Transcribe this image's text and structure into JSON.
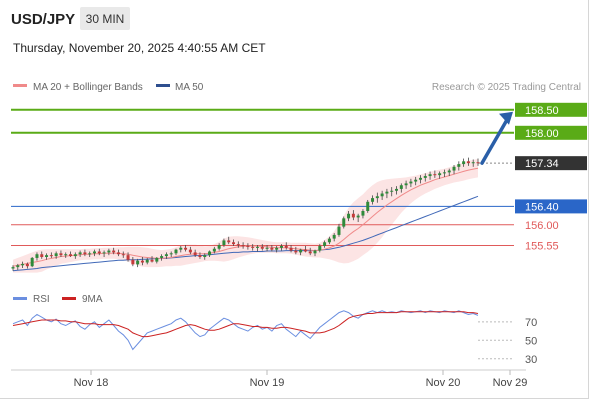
{
  "header": {
    "symbol": "USD/JPY",
    "timeframe": "30 MIN",
    "datetime": "Thursday, November 20, 2025 4:40:55 AM CET",
    "source": "Research © 2025 Trading Central"
  },
  "legend": {
    "ma20": "MA 20 + Bollinger Bands",
    "ma50": "MA 50",
    "rsi": "RSI",
    "rsi_ma": "9MA"
  },
  "colors": {
    "green_level": "#5aab17",
    "blue_level": "#2a66c8",
    "red_level": "#e05a5a",
    "current_price": "#333333",
    "ma20": "#f08a8a",
    "ma50": "#4169b8",
    "bollinger_fill": "#fbd9d9",
    "candle_up": "#2f8a3a",
    "candle_down": "#c43a3a",
    "arrow": "#2a5fa8",
    "rsi_line": "#6b8fe0",
    "rsi_ma_line": "#cc2222"
  },
  "chart_data": [
    {
      "type": "candlestick",
      "panel": "price",
      "x_ticks": [
        "Nov 18",
        "Nov 19",
        "Nov 20",
        "Nov 29"
      ],
      "ylim": [
        154.8,
        158.8
      ],
      "levels": [
        {
          "label": "158.50",
          "value": 158.5,
          "style": "green-box"
        },
        {
          "label": "158.00",
          "value": 158.0,
          "style": "green-box"
        },
        {
          "label": "157.34",
          "value": 157.34,
          "style": "current"
        },
        {
          "label": "156.40",
          "value": 156.4,
          "style": "blue-box"
        },
        {
          "label": "156.00",
          "value": 156.0,
          "style": "red-text"
        },
        {
          "label": "155.55",
          "value": 155.55,
          "style": "red-text"
        }
      ],
      "ohlc": [
        [
          155.05,
          155.12,
          155.0,
          155.08
        ],
        [
          155.08,
          155.15,
          155.02,
          155.12
        ],
        [
          155.12,
          155.2,
          155.06,
          155.15
        ],
        [
          155.15,
          155.18,
          155.05,
          155.1
        ],
        [
          155.1,
          155.3,
          155.08,
          155.28
        ],
        [
          155.28,
          155.4,
          155.22,
          155.36
        ],
        [
          155.36,
          155.42,
          155.26,
          155.3
        ],
        [
          155.3,
          155.38,
          155.24,
          155.34
        ],
        [
          155.34,
          155.4,
          155.28,
          155.32
        ],
        [
          155.32,
          155.42,
          155.26,
          155.38
        ],
        [
          155.38,
          155.44,
          155.3,
          155.34
        ],
        [
          155.34,
          155.4,
          155.28,
          155.36
        ],
        [
          155.36,
          155.42,
          155.3,
          155.32
        ],
        [
          155.32,
          155.4,
          155.26,
          155.36
        ],
        [
          155.36,
          155.44,
          155.3,
          155.4
        ],
        [
          155.4,
          155.46,
          155.32,
          155.36
        ],
        [
          155.36,
          155.42,
          155.3,
          155.38
        ],
        [
          155.38,
          155.46,
          155.32,
          155.42
        ],
        [
          155.42,
          155.48,
          155.34,
          155.38
        ],
        [
          155.38,
          155.44,
          155.3,
          155.4
        ],
        [
          155.4,
          155.48,
          155.34,
          155.44
        ],
        [
          155.44,
          155.5,
          155.36,
          155.4
        ],
        [
          155.4,
          155.46,
          155.32,
          155.36
        ],
        [
          155.36,
          155.42,
          155.28,
          155.34
        ],
        [
          155.34,
          155.4,
          155.2,
          155.24
        ],
        [
          155.24,
          155.3,
          155.1,
          155.14
        ],
        [
          155.14,
          155.26,
          155.08,
          155.22
        ],
        [
          155.22,
          155.3,
          155.12,
          155.18
        ],
        [
          155.18,
          155.28,
          155.14,
          155.24
        ],
        [
          155.24,
          155.32,
          155.18,
          155.2
        ],
        [
          155.2,
          155.3,
          155.16,
          155.28
        ],
        [
          155.28,
          155.36,
          155.22,
          155.32
        ],
        [
          155.32,
          155.4,
          155.26,
          155.36
        ],
        [
          155.36,
          155.42,
          155.3,
          155.38
        ],
        [
          155.38,
          155.48,
          155.34,
          155.46
        ],
        [
          155.46,
          155.54,
          155.4,
          155.5
        ],
        [
          155.5,
          155.56,
          155.42,
          155.46
        ],
        [
          155.46,
          155.52,
          155.36,
          155.4
        ],
        [
          155.4,
          155.46,
          155.3,
          155.34
        ],
        [
          155.34,
          155.4,
          155.26,
          155.3
        ],
        [
          155.3,
          155.38,
          155.24,
          155.34
        ],
        [
          155.34,
          155.44,
          155.3,
          155.42
        ],
        [
          155.42,
          155.52,
          155.38,
          155.48
        ],
        [
          155.48,
          155.6,
          155.44,
          155.56
        ],
        [
          155.56,
          155.7,
          155.52,
          155.66
        ],
        [
          155.66,
          155.74,
          155.58,
          155.62
        ],
        [
          155.62,
          155.68,
          155.54,
          155.58
        ],
        [
          155.58,
          155.64,
          155.5,
          155.56
        ],
        [
          155.56,
          155.62,
          155.48,
          155.54
        ],
        [
          155.54,
          155.6,
          155.46,
          155.52
        ],
        [
          155.52,
          155.58,
          155.44,
          155.5
        ],
        [
          155.5,
          155.56,
          155.42,
          155.52
        ],
        [
          155.52,
          155.58,
          155.44,
          155.48
        ],
        [
          155.48,
          155.56,
          155.42,
          155.5
        ],
        [
          155.5,
          155.56,
          155.42,
          155.46
        ],
        [
          155.46,
          155.54,
          155.4,
          155.5
        ],
        [
          155.5,
          155.58,
          155.44,
          155.54
        ],
        [
          155.54,
          155.62,
          155.46,
          155.5
        ],
        [
          155.5,
          155.56,
          155.4,
          155.44
        ],
        [
          155.44,
          155.52,
          155.36,
          155.4
        ],
        [
          155.4,
          155.48,
          155.34,
          155.46
        ],
        [
          155.46,
          155.54,
          155.4,
          155.42
        ],
        [
          155.42,
          155.5,
          155.34,
          155.38
        ],
        [
          155.38,
          155.46,
          155.32,
          155.44
        ],
        [
          155.44,
          155.58,
          155.4,
          155.54
        ],
        [
          155.54,
          155.66,
          155.5,
          155.62
        ],
        [
          155.62,
          155.74,
          155.58,
          155.7
        ],
        [
          155.7,
          155.82,
          155.64,
          155.78
        ],
        [
          155.78,
          156.02,
          155.74,
          155.96
        ],
        [
          155.96,
          156.18,
          155.92,
          156.14
        ],
        [
          156.14,
          156.3,
          156.08,
          156.24
        ],
        [
          156.24,
          156.32,
          156.1,
          156.16
        ],
        [
          156.16,
          156.24,
          156.06,
          156.2
        ],
        [
          156.2,
          156.34,
          156.14,
          156.3
        ],
        [
          156.3,
          156.54,
          156.26,
          156.5
        ],
        [
          156.5,
          156.64,
          156.44,
          156.58
        ],
        [
          156.58,
          156.7,
          156.48,
          156.62
        ],
        [
          156.62,
          156.74,
          156.54,
          156.68
        ],
        [
          156.68,
          156.78,
          156.58,
          156.72
        ],
        [
          156.72,
          156.82,
          156.62,
          156.74
        ],
        [
          156.74,
          156.84,
          156.66,
          156.78
        ],
        [
          156.78,
          156.9,
          156.7,
          156.86
        ],
        [
          156.86,
          156.96,
          156.78,
          156.9
        ],
        [
          156.9,
          157.0,
          156.82,
          156.94
        ],
        [
          156.94,
          157.04,
          156.86,
          156.98
        ],
        [
          156.98,
          157.08,
          156.9,
          157.02
        ],
        [
          157.02,
          157.12,
          156.94,
          157.06
        ],
        [
          157.06,
          157.16,
          156.98,
          157.1
        ],
        [
          157.1,
          157.18,
          157.02,
          157.08
        ],
        [
          157.08,
          157.16,
          157.0,
          157.12
        ],
        [
          157.12,
          157.2,
          157.04,
          157.14
        ],
        [
          157.14,
          157.22,
          157.06,
          157.18
        ],
        [
          157.18,
          157.3,
          157.1,
          157.26
        ],
        [
          157.26,
          157.38,
          157.18,
          157.32
        ],
        [
          157.32,
          157.44,
          157.26,
          157.38
        ],
        [
          157.38,
          157.46,
          157.28,
          157.34
        ],
        [
          157.34,
          157.42,
          157.26,
          157.36
        ],
        [
          157.36,
          157.44,
          157.28,
          157.34
        ]
      ],
      "ma20": [
        155.1,
        155.12,
        155.14,
        155.16,
        155.18,
        155.2,
        155.22,
        155.25,
        155.27,
        155.29,
        155.31,
        155.32,
        155.33,
        155.34,
        155.35,
        155.36,
        155.36,
        155.37,
        155.37,
        155.38,
        155.38,
        155.38,
        155.38,
        155.37,
        155.36,
        155.34,
        155.32,
        155.3,
        155.29,
        155.28,
        155.27,
        155.27,
        155.28,
        155.29,
        155.31,
        155.33,
        155.35,
        155.36,
        155.37,
        155.37,
        155.37,
        155.38,
        155.4,
        155.42,
        155.45,
        155.48,
        155.5,
        155.52,
        155.53,
        155.54,
        155.54,
        155.54,
        155.53,
        155.52,
        155.51,
        155.5,
        155.5,
        155.5,
        155.49,
        155.48,
        155.47,
        155.46,
        155.45,
        155.44,
        155.45,
        155.47,
        155.5,
        155.54,
        155.6,
        155.68,
        155.77,
        155.85,
        155.92,
        156.0,
        156.09,
        156.18,
        156.27,
        156.35,
        156.43,
        156.5,
        156.57,
        156.64,
        156.7,
        156.76,
        156.81,
        156.86,
        156.9,
        156.94,
        156.98,
        157.01,
        157.04,
        157.07,
        157.1,
        157.13,
        157.16,
        157.19,
        157.21,
        157.23
      ],
      "bb_upper_offset": [
        0.14,
        0.16,
        0.18,
        0.2,
        0.22,
        0.24,
        0.24,
        0.22,
        0.2,
        0.18,
        0.16,
        0.15,
        0.14,
        0.13,
        0.12,
        0.12,
        0.12,
        0.12,
        0.12,
        0.12,
        0.12,
        0.12,
        0.13,
        0.14,
        0.16,
        0.18,
        0.2,
        0.21,
        0.21,
        0.2,
        0.19,
        0.18,
        0.18,
        0.19,
        0.2,
        0.22,
        0.22,
        0.21,
        0.2,
        0.18,
        0.16,
        0.16,
        0.18,
        0.21,
        0.25,
        0.26,
        0.25,
        0.23,
        0.21,
        0.19,
        0.17,
        0.15,
        0.14,
        0.13,
        0.12,
        0.12,
        0.12,
        0.12,
        0.12,
        0.13,
        0.14,
        0.15,
        0.15,
        0.15,
        0.16,
        0.2,
        0.25,
        0.32,
        0.42,
        0.52,
        0.6,
        0.64,
        0.66,
        0.66,
        0.68,
        0.68,
        0.66,
        0.62,
        0.56,
        0.5,
        0.44,
        0.38,
        0.33,
        0.29,
        0.26,
        0.24,
        0.22,
        0.21,
        0.2,
        0.19,
        0.18,
        0.18,
        0.18,
        0.19,
        0.2,
        0.2,
        0.2,
        0.2
      ],
      "ma50": [
        155.0,
        155.01,
        155.02,
        155.03,
        155.04,
        155.05,
        155.07,
        155.08,
        155.09,
        155.1,
        155.11,
        155.12,
        155.13,
        155.14,
        155.15,
        155.16,
        155.17,
        155.18,
        155.19,
        155.2,
        155.21,
        155.22,
        155.23,
        155.23,
        155.24,
        155.24,
        155.24,
        155.25,
        155.25,
        155.26,
        155.26,
        155.27,
        155.27,
        155.28,
        155.29,
        155.3,
        155.31,
        155.32,
        155.33,
        155.33,
        155.34,
        155.35,
        155.36,
        155.37,
        155.38,
        155.39,
        155.4,
        155.4,
        155.41,
        155.41,
        155.42,
        155.42,
        155.42,
        155.43,
        155.43,
        155.43,
        155.43,
        155.44,
        155.44,
        155.44,
        155.44,
        155.44,
        155.44,
        155.44,
        155.45,
        155.46,
        155.47,
        155.49,
        155.51,
        155.54,
        155.57,
        155.6,
        155.63,
        155.66,
        155.7,
        155.74,
        155.78,
        155.82,
        155.86,
        155.9,
        155.94,
        155.98,
        156.02,
        156.06,
        156.1,
        156.14,
        156.18,
        156.22,
        156.26,
        156.3,
        156.34,
        156.38,
        156.42,
        156.46,
        156.5,
        156.54,
        156.58,
        156.62
      ],
      "arrow": {
        "from_price": 157.34,
        "to_price": 158.5
      }
    },
    {
      "type": "line",
      "panel": "rsi",
      "title": "RSI",
      "yticks": [
        "70",
        "50",
        "30"
      ],
      "ylim": [
        20,
        85
      ],
      "series": [
        {
          "name": "RSI",
          "values": [
            68,
            70,
            72,
            66,
            74,
            78,
            75,
            72,
            70,
            73,
            68,
            66,
            69,
            71,
            65,
            62,
            67,
            70,
            64,
            68,
            72,
            66,
            60,
            56,
            50,
            40,
            46,
            52,
            58,
            60,
            62,
            64,
            66,
            68,
            72,
            74,
            70,
            64,
            58,
            54,
            56,
            62,
            66,
            70,
            74,
            72,
            68,
            64,
            62,
            60,
            64,
            66,
            62,
            64,
            60,
            66,
            68,
            62,
            58,
            54,
            60,
            56,
            52,
            58,
            64,
            68,
            72,
            76,
            80,
            82,
            80,
            76,
            74,
            78,
            80,
            82,
            80,
            82,
            80,
            81,
            80,
            82,
            81,
            80,
            81,
            82,
            80,
            82,
            81,
            80,
            82,
            81,
            80,
            82,
            80,
            78,
            79,
            77
          ]
        },
        {
          "name": "9MA",
          "values": [
            66,
            67,
            68,
            69,
            70,
            71,
            72,
            72,
            72,
            72,
            71,
            71,
            70,
            70,
            69,
            68,
            68,
            68,
            67,
            67,
            67,
            67,
            66,
            64,
            62,
            58,
            56,
            54,
            54,
            55,
            56,
            57,
            58,
            60,
            62,
            64,
            66,
            67,
            66,
            64,
            62,
            61,
            61,
            62,
            64,
            66,
            68,
            68,
            67,
            66,
            65,
            65,
            64,
            64,
            63,
            63,
            64,
            64,
            63,
            62,
            61,
            60,
            58,
            58,
            58,
            59,
            61,
            63,
            66,
            70,
            74,
            76,
            77,
            78,
            79,
            79,
            80,
            80,
            80,
            80,
            80,
            81,
            81,
            81,
            81,
            81,
            81,
            81,
            81,
            81,
            81,
            81,
            81,
            81,
            81,
            80,
            80,
            79
          ]
        }
      ]
    }
  ]
}
